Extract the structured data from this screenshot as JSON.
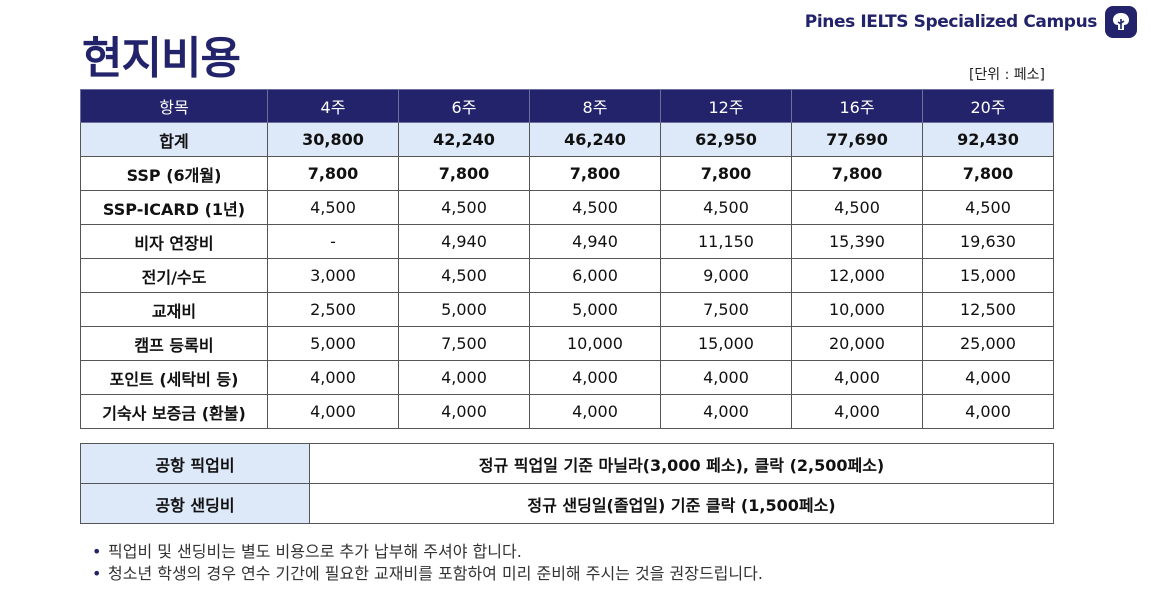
{
  "title": "현지비용",
  "brand": {
    "name": "Pines IELTS Specialized Campus",
    "logo_icon": "tree-icon"
  },
  "unit": "[단위 : 페소]",
  "table": {
    "headers": [
      "항목",
      "4주",
      "6주",
      "8주",
      "12주",
      "16주",
      "20주"
    ],
    "rows": [
      {
        "label": "합계",
        "values": [
          "30,800",
          "42,240",
          "46,240",
          "62,950",
          "77,690",
          "92,430"
        ]
      },
      {
        "label": "SSP (6개월)",
        "values": [
          "7,800",
          "7,800",
          "7,800",
          "7,800",
          "7,800",
          "7,800"
        ]
      },
      {
        "label": "SSP-ICARD (1년)",
        "values": [
          "4,500",
          "4,500",
          "4,500",
          "4,500",
          "4,500",
          "4,500"
        ]
      },
      {
        "label": "비자 연장비",
        "values": [
          "-",
          "4,940",
          "4,940",
          "11,150",
          "15,390",
          "19,630"
        ]
      },
      {
        "label": "전기/수도",
        "values": [
          "3,000",
          "4,500",
          "6,000",
          "9,000",
          "12,000",
          "15,000"
        ]
      },
      {
        "label": "교재비",
        "values": [
          "2,500",
          "5,000",
          "5,000",
          "7,500",
          "10,000",
          "12,500"
        ]
      },
      {
        "label": "캠프 등록비",
        "values": [
          "5,000",
          "7,500",
          "10,000",
          "15,000",
          "20,000",
          "25,000"
        ]
      },
      {
        "label": "포인트 (세탁비 등)",
        "values": [
          "4,000",
          "4,000",
          "4,000",
          "4,000",
          "4,000",
          "4,000"
        ]
      },
      {
        "label": "기숙사 보증금 (환불)",
        "values": [
          "4,000",
          "4,000",
          "4,000",
          "4,000",
          "4,000",
          "4,000"
        ]
      }
    ]
  },
  "airport": [
    {
      "label": "공항 픽업비",
      "value": "정규 픽업일 기준 마닐라(3,000 페소), 클락 (2,500페소)"
    },
    {
      "label": "공항 샌딩비",
      "value": "정규 샌딩일(졸업일) 기준 클락 (1,500페소)"
    }
  ],
  "notes": [
    "픽업비 및 샌딩비는 별도 비용으로 추가 납부해 주셔야 합니다.",
    "청소년 학생의 경우 연수 기간에 필요한 교재비를 포함하여 미리 준비해 주시는 것을 권장드립니다."
  ],
  "colors": {
    "navy": "#23236b",
    "highlight": "#dde8f8"
  }
}
